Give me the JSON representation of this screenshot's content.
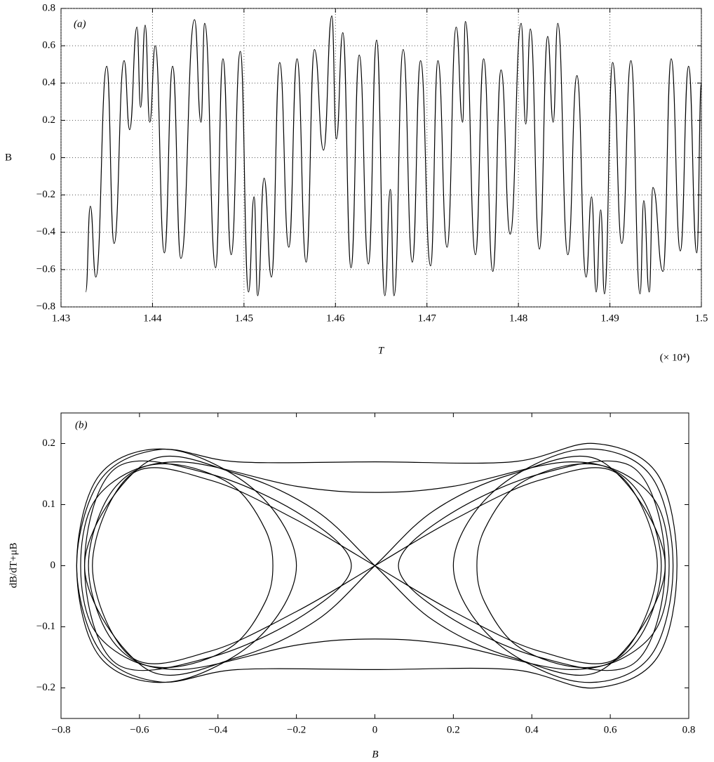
{
  "chart_data": [
    {
      "type": "line",
      "panel_label": "(a)",
      "xlabel": "T",
      "ylabel": "B",
      "x_multiplier": "(× 10⁴)",
      "xlim": [
        1.43,
        1.5
      ],
      "ylim": [
        -0.8,
        0.8
      ],
      "xticks": [
        1.43,
        1.44,
        1.45,
        1.46,
        1.47,
        1.48,
        1.49,
        1.5
      ],
      "yticks": [
        {
          "value": -0.8,
          "label": "−0.8"
        },
        {
          "value": -0.6,
          "label": "−0.6"
        },
        {
          "value": -0.4,
          "label": "−0.4"
        },
        {
          "value": -0.2,
          "label": "−0.2"
        },
        0,
        0.2,
        0.4,
        0.6,
        0.8
      ],
      "grid": true,
      "color": "#000000",
      "x": [
        1.4327,
        1.4332,
        1.4338,
        1.435,
        1.4358,
        1.4369,
        1.4375,
        1.4383,
        1.4387,
        1.4392,
        1.4397,
        1.4403,
        1.4413,
        1.4422,
        1.4431,
        1.4446,
        1.4453,
        1.4457,
        1.4469,
        1.4477,
        1.4486,
        1.4496,
        1.4505,
        1.4511,
        1.4515,
        1.4522,
        1.453,
        1.4539,
        1.4549,
        1.4558,
        1.4568,
        1.4577,
        1.4587,
        1.4596,
        1.4601,
        1.4608,
        1.4617,
        1.4626,
        1.4636,
        1.4645,
        1.4654,
        1.466,
        1.4664,
        1.4674,
        1.4684,
        1.4693,
        1.4704,
        1.4712,
        1.4722,
        1.4732,
        1.4739,
        1.4742,
        1.4753,
        1.4762,
        1.4772,
        1.4781,
        1.4791,
        1.4803,
        1.4808,
        1.4813,
        1.4823,
        1.4832,
        1.4838,
        1.4843,
        1.4854,
        1.4864,
        1.4874,
        1.488,
        1.4885,
        1.489,
        1.4894,
        1.4903,
        1.4913,
        1.4923,
        1.4933,
        1.4937,
        1.4943,
        1.4947,
        1.4958,
        1.4967,
        1.4977,
        1.4986,
        1.4995,
        1.5
      ],
      "values": [
        -0.72,
        -0.26,
        -0.64,
        0.49,
        -0.46,
        0.52,
        0.15,
        0.7,
        0.27,
        0.71,
        0.19,
        0.6,
        -0.51,
        0.49,
        -0.54,
        0.74,
        0.19,
        0.72,
        -0.59,
        0.53,
        -0.52,
        0.57,
        -0.72,
        -0.21,
        -0.74,
        -0.11,
        -0.64,
        0.51,
        -0.48,
        0.53,
        -0.56,
        0.58,
        0.04,
        0.76,
        0.1,
        0.67,
        -0.59,
        0.55,
        -0.57,
        0.63,
        -0.74,
        -0.17,
        -0.74,
        0.58,
        -0.56,
        0.52,
        -0.58,
        0.52,
        -0.48,
        0.7,
        0.19,
        0.73,
        -0.52,
        0.53,
        -0.61,
        0.47,
        -0.41,
        0.72,
        0.18,
        0.69,
        -0.49,
        0.65,
        0.19,
        0.72,
        -0.52,
        0.44,
        -0.64,
        -0.21,
        -0.72,
        -0.28,
        -0.73,
        0.51,
        -0.46,
        0.52,
        -0.73,
        -0.23,
        -0.72,
        -0.16,
        -0.61,
        0.53,
        -0.5,
        0.49,
        -0.51,
        0.4
      ]
    },
    {
      "type": "line",
      "panel_label": "(b)",
      "xlabel": "B",
      "ylabel": "dB/dT+μB",
      "xlim": [
        -0.8,
        0.8
      ],
      "ylim": [
        -0.25,
        0.25
      ],
      "xticks": [
        {
          "value": -0.8,
          "label": "−0.8"
        },
        {
          "value": -0.6,
          "label": "−0.6"
        },
        {
          "value": -0.4,
          "label": "−0.4"
        },
        {
          "value": -0.2,
          "label": "−0.2"
        },
        0,
        0.2,
        0.4,
        0.6,
        0.8
      ],
      "yticks": [
        {
          "value": -0.2,
          "label": "−0.2"
        },
        {
          "value": -0.1,
          "label": "−0.1"
        },
        0,
        0.1,
        0.2
      ],
      "grid": false,
      "color": "#000000",
      "series": [
        {
          "x": [
            0.75,
            0.72,
            0.62,
            0.5,
            0.36,
            0.28,
            0.26,
            0.28,
            0.36,
            0.5,
            0.62,
            0.72,
            0.75
          ],
          "y": [
            0,
            0.1,
            0.155,
            0.165,
            0.13,
            0.06,
            0,
            -0.06,
            -0.13,
            -0.165,
            -0.155,
            -0.1,
            0
          ]
        },
        {
          "x": [
            -0.75,
            -0.72,
            -0.62,
            -0.5,
            -0.36,
            -0.28,
            -0.26,
            -0.28,
            -0.36,
            -0.5,
            -0.62,
            -0.72,
            -0.75
          ],
          "y": [
            0,
            -0.1,
            -0.155,
            -0.165,
            -0.13,
            -0.06,
            0,
            0.06,
            0.13,
            0.165,
            0.155,
            0.1,
            0
          ]
        },
        {
          "x": [
            0.77,
            0.72,
            0.56,
            0.35,
            0,
            -0.35,
            -0.55,
            -0.7,
            -0.76,
            -0.7,
            -0.55,
            -0.35,
            0,
            0.35,
            0.56,
            0.72,
            0.77
          ],
          "y": [
            0,
            0.15,
            0.2,
            0.17,
            0.17,
            0.17,
            0.19,
            0.14,
            0,
            -0.14,
            -0.19,
            -0.17,
            -0.17,
            -0.17,
            -0.2,
            -0.15,
            0
          ]
        },
        {
          "x": [
            0.72,
            0.62,
            0.42,
            0.2,
            0,
            -0.2,
            -0.42,
            -0.62,
            -0.72,
            -0.62,
            -0.42,
            -0.2,
            0,
            0.2,
            0.42,
            0.62,
            0.72
          ],
          "y": [
            0,
            0.15,
            0.14,
            0.075,
            0,
            -0.075,
            -0.14,
            -0.15,
            0,
            0.15,
            0.14,
            0.075,
            0,
            -0.075,
            -0.14,
            -0.15,
            0
          ]
        },
        {
          "x": [
            0.74,
            0.66,
            0.42,
            0.18,
            0.06,
            0.18,
            0.42,
            0.66,
            0.74
          ],
          "y": [
            0,
            0.16,
            0.15,
            0.08,
            0,
            -0.08,
            -0.15,
            -0.16,
            0
          ]
        },
        {
          "x": [
            -0.74,
            -0.66,
            -0.42,
            -0.18,
            -0.06,
            -0.18,
            -0.42,
            -0.66,
            -0.74
          ],
          "y": [
            0,
            -0.16,
            -0.15,
            -0.08,
            0,
            0.08,
            0.15,
            0.16,
            0
          ]
        },
        {
          "x": [
            0.73,
            0.66,
            0.5,
            0.2,
            0,
            -0.2,
            -0.5,
            -0.66,
            -0.73,
            -0.66,
            -0.5,
            -0.2,
            0,
            0.2,
            0.5,
            0.66,
            0.73
          ],
          "y": [
            0,
            0.13,
            0.17,
            0.13,
            0.12,
            0.13,
            0.17,
            0.13,
            0,
            -0.13,
            -0.17,
            -0.13,
            -0.12,
            -0.13,
            -0.17,
            -0.13,
            0
          ]
        },
        {
          "x": [
            0.76,
            0.7,
            0.52,
            0.3,
            0.2,
            0.3,
            0.52,
            0.7,
            0.76
          ],
          "y": [
            0,
            0.15,
            0.19,
            0.12,
            0,
            -0.12,
            -0.19,
            -0.15,
            0
          ]
        },
        {
          "x": [
            -0.76,
            -0.7,
            -0.52,
            -0.3,
            -0.2,
            -0.3,
            -0.52,
            -0.7,
            -0.76
          ],
          "y": [
            0,
            -0.15,
            -0.19,
            -0.12,
            0,
            0.12,
            0.19,
            0.15,
            0
          ]
        },
        {
          "x": [
            0.74,
            0.58,
            0.35,
            0.15,
            0,
            -0.15,
            -0.35,
            -0.58,
            -0.74,
            -0.58,
            -0.35,
            -0.15,
            0,
            0.15,
            0.35,
            0.58,
            0.74
          ],
          "y": [
            0,
            0.17,
            0.15,
            0.09,
            0,
            -0.09,
            -0.15,
            -0.17,
            0,
            0.17,
            0.15,
            0.09,
            0,
            -0.09,
            -0.15,
            -0.17,
            0
          ]
        }
      ]
    }
  ]
}
